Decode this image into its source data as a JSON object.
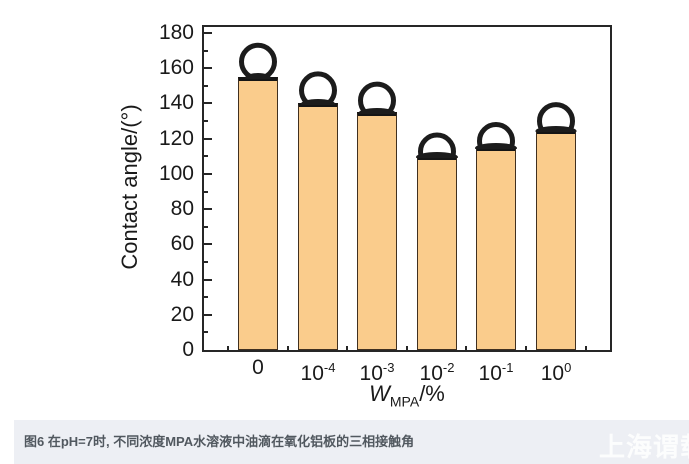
{
  "chart_data": {
    "type": "bar",
    "title": "",
    "ylabel": "Contact angle/(°)",
    "xlabel": {
      "symbol": "W",
      "subscript": "MPA",
      "unit": "/%"
    },
    "categories": [
      {
        "label": "0",
        "base": "0",
        "exp": ""
      },
      {
        "label": "10^-4",
        "base": "10",
        "exp": "-4"
      },
      {
        "label": "10^-3",
        "base": "10",
        "exp": "-3"
      },
      {
        "label": "10^-2",
        "base": "10",
        "exp": "-2"
      },
      {
        "label": "10^-1",
        "base": "10",
        "exp": "-1"
      },
      {
        "label": "10^0",
        "base": "10",
        "exp": "0"
      }
    ],
    "values": [
      155,
      140,
      135,
      110,
      115,
      125
    ],
    "ylim": [
      0,
      180
    ],
    "ytick_major": 20,
    "ytick_minor": 10,
    "grid": false,
    "legend": "none",
    "droplet_markers": true,
    "colors": {
      "bar_fill": "#FACC8C",
      "bar_border": "#403020",
      "bar_top_edge": "#151515",
      "droplet_outline": "#1c1c1c",
      "droplet_fill": "#ffffff",
      "axis": "#262626"
    }
  },
  "caption": {
    "text": "图6 在pH=7时, 不同浓度MPA水溶液中油滴在氧化铝板的三相接触角",
    "background": "#edeff4",
    "text_color": "#51585f"
  },
  "watermark": {
    "text": "上海谓载",
    "color": "#ffffff"
  }
}
